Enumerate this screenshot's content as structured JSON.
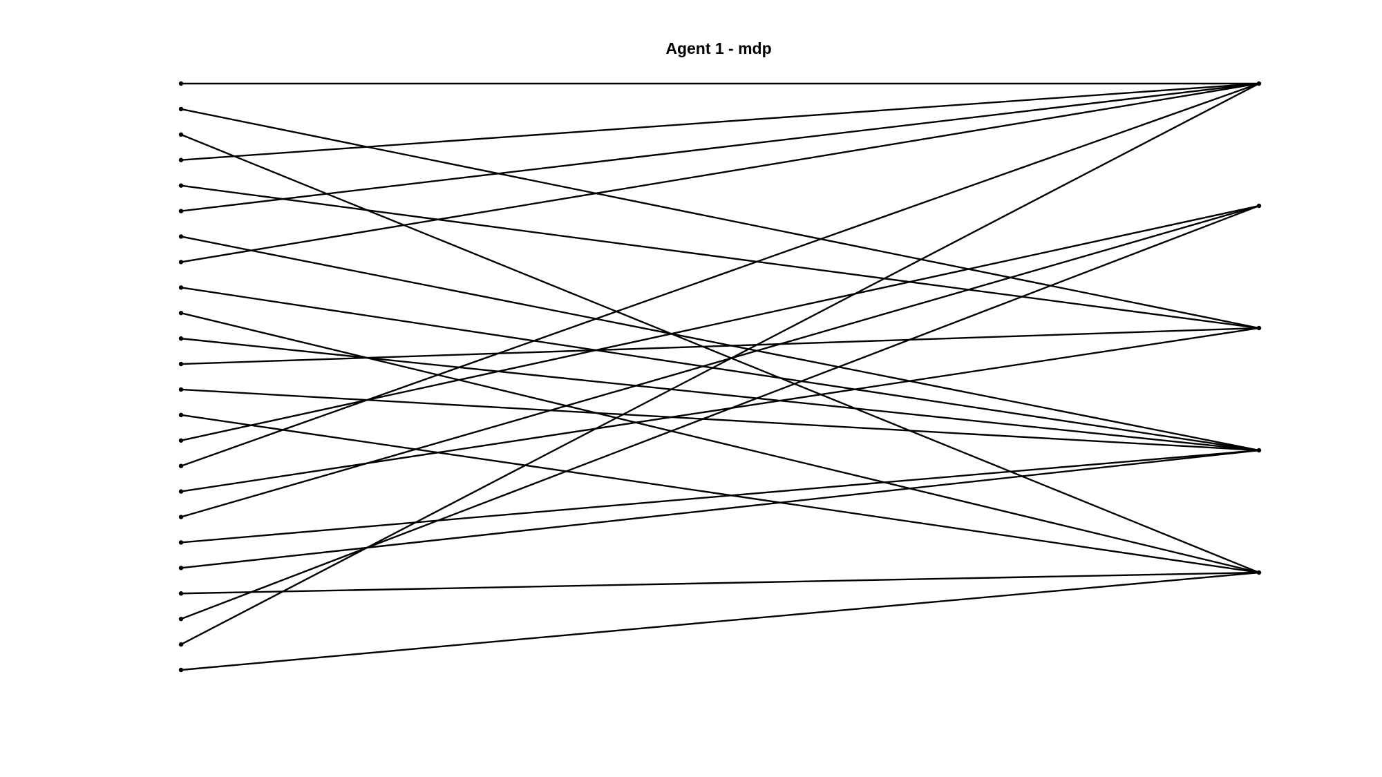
{
  "title": "Agent 1 - mdp",
  "diagram": {
    "type": "bipartite-mapping",
    "left_node_count": 24,
    "right_node_count": 5,
    "edge_color": "#000000",
    "edges": [
      [
        0,
        0
      ],
      [
        1,
        2
      ],
      [
        2,
        4
      ],
      [
        3,
        0
      ],
      [
        4,
        2
      ],
      [
        5,
        0
      ],
      [
        6,
        3
      ],
      [
        7,
        0
      ],
      [
        8,
        3
      ],
      [
        9,
        4
      ],
      [
        10,
        3
      ],
      [
        11,
        2
      ],
      [
        12,
        3
      ],
      [
        13,
        4
      ],
      [
        14,
        1
      ],
      [
        15,
        0
      ],
      [
        16,
        2
      ],
      [
        17,
        1
      ],
      [
        18,
        3
      ],
      [
        19,
        3
      ],
      [
        20,
        4
      ],
      [
        21,
        1
      ],
      [
        22,
        0
      ],
      [
        23,
        4
      ]
    ]
  }
}
